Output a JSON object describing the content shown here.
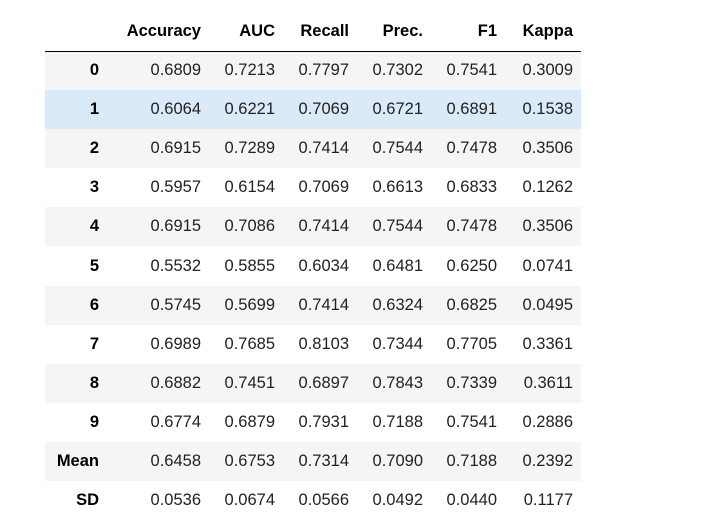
{
  "table": {
    "columns": [
      "",
      "Accuracy",
      "AUC",
      "Recall",
      "Prec.",
      "F1",
      "Kappa"
    ],
    "rows": [
      {
        "index": "0",
        "values": [
          "0.6809",
          "0.7213",
          "0.7797",
          "0.7302",
          "0.7541",
          "0.3009"
        ]
      },
      {
        "index": "1",
        "values": [
          "0.6064",
          "0.6221",
          "0.7069",
          "0.6721",
          "0.6891",
          "0.1538"
        ]
      },
      {
        "index": "2",
        "values": [
          "0.6915",
          "0.7289",
          "0.7414",
          "0.7544",
          "0.7478",
          "0.3506"
        ]
      },
      {
        "index": "3",
        "values": [
          "0.5957",
          "0.6154",
          "0.7069",
          "0.6613",
          "0.6833",
          "0.1262"
        ]
      },
      {
        "index": "4",
        "values": [
          "0.6915",
          "0.7086",
          "0.7414",
          "0.7544",
          "0.7478",
          "0.3506"
        ]
      },
      {
        "index": "5",
        "values": [
          "0.5532",
          "0.5855",
          "0.6034",
          "0.6481",
          "0.6250",
          "0.0741"
        ]
      },
      {
        "index": "6",
        "values": [
          "0.5745",
          "0.5699",
          "0.7414",
          "0.6324",
          "0.6825",
          "0.0495"
        ]
      },
      {
        "index": "7",
        "values": [
          "0.6989",
          "0.7685",
          "0.8103",
          "0.7344",
          "0.7705",
          "0.3361"
        ]
      },
      {
        "index": "8",
        "values": [
          "0.6882",
          "0.7451",
          "0.6897",
          "0.7843",
          "0.7339",
          "0.3611"
        ]
      },
      {
        "index": "9",
        "values": [
          "0.6774",
          "0.6879",
          "0.7931",
          "0.7188",
          "0.7541",
          "0.2886"
        ]
      },
      {
        "index": "Mean",
        "values": [
          "0.6458",
          "0.6753",
          "0.7314",
          "0.7090",
          "0.7188",
          "0.2392"
        ]
      },
      {
        "index": "SD",
        "values": [
          "0.0536",
          "0.0674",
          "0.0566",
          "0.0492",
          "0.0440",
          "0.1177"
        ]
      }
    ],
    "highlighted_row": "1"
  },
  "colors": {
    "row_stripe": "#f5f5f5",
    "row_highlight": "#daeaf8",
    "header_rule": "#000000"
  }
}
